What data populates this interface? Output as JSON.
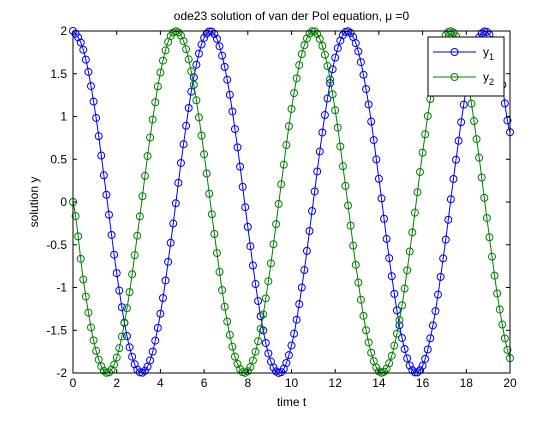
{
  "chart_data": {
    "type": "line",
    "title": "ode23 solution of van der Pol equation, μ =0",
    "xlabel": "time t",
    "ylabel": "solution y",
    "xlim": [
      0,
      20
    ],
    "ylim": [
      -2,
      2
    ],
    "x_ticks": [
      "0",
      "2",
      "4",
      "6",
      "8",
      "10",
      "12",
      "14",
      "16",
      "18",
      "20"
    ],
    "y_ticks": [
      "-2",
      "-1.5",
      "-1",
      "-0.5",
      "0",
      "0.5",
      "1",
      "1.5",
      "2"
    ],
    "grid": false,
    "legend_position": "top-right",
    "marker": "circle",
    "samples_t": [
      0,
      0.5,
      1.0,
      1.5,
      2.0,
      2.5,
      3.0,
      3.5,
      4.0,
      4.5,
      5.0,
      5.5,
      6.0,
      6.5,
      7.0,
      7.5,
      8.0,
      8.5,
      9.0,
      9.5,
      10.0,
      10.5,
      11.0,
      11.5,
      12.0,
      12.5,
      13.0,
      13.5,
      14.0,
      14.5,
      15.0,
      15.5,
      16.0,
      16.5,
      17.0,
      17.5,
      18.0,
      18.5,
      19.0,
      19.5,
      20.0
    ],
    "series": [
      {
        "name": "y",
        "subscript": "1",
        "color": "#0000ff",
        "values": [
          2.0,
          1.755,
          1.081,
          0.141,
          -0.832,
          -1.602,
          -1.98,
          -1.873,
          -1.307,
          -0.422,
          0.567,
          1.418,
          1.92,
          1.953,
          1.508,
          0.693,
          -0.291,
          -1.204,
          -1.822,
          -1.995,
          -1.678,
          -0.951,
          0.009,
          0.968,
          1.688,
          1.994,
          1.813,
          1.187,
          0.272,
          -0.71,
          -1.519,
          -1.956,
          -1.915,
          -1.404,
          -0.551,
          0.439,
          1.321,
          1.875,
          1.977,
          1.593,
          0.816
        ]
      },
      {
        "name": "y",
        "subscript": "2",
        "color": "#008000",
        "values": [
          0.0,
          -0.959,
          -1.683,
          -1.995,
          -1.819,
          -1.197,
          -0.282,
          0.701,
          1.514,
          1.955,
          1.918,
          1.411,
          0.559,
          -0.43,
          -1.314,
          -1.876,
          -1.979,
          -1.595,
          -0.824,
          0.15,
          1.088,
          1.759,
          2.0,
          1.75,
          1.073,
          0.132,
          -0.84,
          -1.61,
          -1.981,
          -1.867,
          -1.297,
          -0.412,
          0.576,
          1.424,
          1.923,
          1.951,
          1.501,
          0.683,
          -0.3,
          -1.212,
          -1.826
        ]
      }
    ]
  }
}
